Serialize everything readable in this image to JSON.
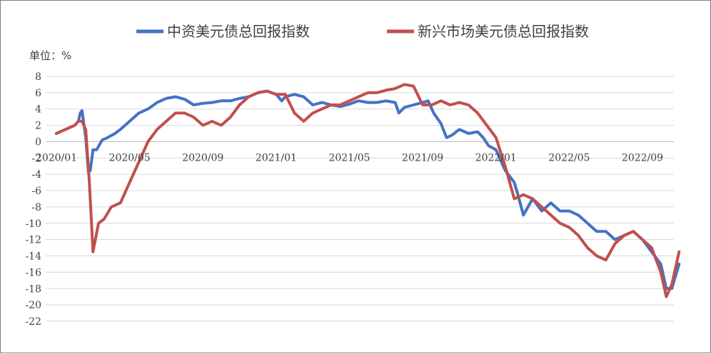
{
  "chart_data": {
    "type": "line",
    "unit_label": "单位：%",
    "legend_position": "top",
    "grid": "horizontal",
    "ylim": [
      -22,
      8
    ],
    "y_ticks": [
      8,
      6,
      4,
      2,
      0,
      -2,
      -4,
      -6,
      -8,
      -10,
      -12,
      -14,
      -16,
      -18,
      -20,
      -22
    ],
    "x_tick_labels": [
      "2020/01",
      "2020/05",
      "2020/09",
      "2021/01",
      "2021/05",
      "2021/09",
      "2022/01",
      "2022/05",
      "2022/09"
    ],
    "x_tick_months": [
      0,
      4,
      8,
      12,
      16,
      20,
      24,
      28,
      32
    ],
    "x_range_months": [
      0,
      34
    ],
    "series": [
      {
        "name": "中资美元债总回报指数",
        "color": "#4472C4",
        "x": [
          0,
          0.5,
          1,
          1.2,
          1.3,
          1.4,
          1.6,
          1.75,
          1.85,
          2.0,
          2.2,
          2.5,
          2.8,
          3.2,
          3.5,
          4,
          4.5,
          5,
          5.5,
          6,
          6.5,
          7,
          7.5,
          8,
          8.5,
          9,
          9.5,
          10,
          10.5,
          11,
          11.5,
          12,
          12.3,
          12.5,
          13,
          13.5,
          14,
          14.5,
          15,
          15.5,
          16,
          16.5,
          17,
          17.5,
          18,
          18.5,
          18.7,
          19,
          19.5,
          20,
          20.3,
          20.6,
          21,
          21.3,
          21.6,
          22,
          22.5,
          23,
          23.3,
          23.6,
          24,
          24.5,
          25,
          25.2,
          25.5,
          26,
          26.5,
          27,
          27.5,
          28,
          28.5,
          29,
          29.5,
          30,
          30.5,
          31,
          31.5,
          32,
          32.5,
          33,
          33.3,
          33.6,
          34
        ],
        "y": [
          1.0,
          1.5,
          2.0,
          2.5,
          3.5,
          3.8,
          0.5,
          -3.8,
          -3.5,
          -1.0,
          -1.0,
          0.2,
          0.5,
          1.0,
          1.5,
          2.5,
          3.5,
          4.0,
          4.8,
          5.3,
          5.5,
          5.2,
          4.5,
          4.7,
          4.8,
          5.0,
          5.0,
          5.3,
          5.5,
          6.0,
          6.2,
          5.8,
          5.0,
          5.5,
          5.8,
          5.5,
          4.5,
          4.8,
          4.5,
          4.3,
          4.6,
          5.0,
          4.8,
          4.8,
          5.0,
          4.8,
          3.5,
          4.2,
          4.5,
          4.8,
          5.0,
          3.5,
          2.2,
          0.5,
          0.8,
          1.5,
          1.0,
          1.2,
          0.5,
          -0.5,
          -1.0,
          -3.5,
          -5.0,
          -6.5,
          -9.0,
          -7.0,
          -8.5,
          -7.5,
          -8.5,
          -8.5,
          -9.0,
          -10.0,
          -11.0,
          -11.0,
          -12.0,
          -11.5,
          -11.0,
          -12.0,
          -13.5,
          -15.0,
          -18.0,
          -18.0,
          -15.0
        ]
      },
      {
        "name": "新兴市场美元债总回报指数",
        "color": "#C0504D",
        "x": [
          0,
          0.5,
          1,
          1.2,
          1.4,
          1.6,
          1.8,
          2.0,
          2.3,
          2.6,
          3.0,
          3.5,
          4,
          4.5,
          5,
          5.5,
          6,
          6.5,
          7,
          7.5,
          8,
          8.5,
          9,
          9.5,
          10,
          10.5,
          11,
          11.5,
          12,
          12.5,
          13,
          13.5,
          14,
          14.5,
          15,
          15.5,
          16,
          16.5,
          17,
          17.5,
          18,
          18.5,
          19,
          19.5,
          20,
          20.5,
          21,
          21.5,
          22,
          22.5,
          23,
          23.5,
          24,
          24.5,
          25,
          25.5,
          26,
          26.5,
          27,
          27.5,
          28,
          28.5,
          29,
          29.5,
          30,
          30.5,
          31,
          31.5,
          32,
          32.5,
          33,
          33.3,
          33.6,
          34
        ],
        "y": [
          1.0,
          1.5,
          2.0,
          2.5,
          2.5,
          1.5,
          -5.0,
          -13.5,
          -10.0,
          -9.5,
          -8.0,
          -7.5,
          -5.0,
          -2.5,
          0.0,
          1.5,
          2.5,
          3.5,
          3.5,
          3.0,
          2.0,
          2.5,
          2.0,
          3.0,
          4.5,
          5.5,
          6.0,
          6.2,
          5.8,
          5.8,
          3.5,
          2.5,
          3.5,
          4.0,
          4.5,
          4.5,
          5.0,
          5.5,
          6.0,
          6.0,
          6.3,
          6.5,
          7.0,
          6.8,
          4.5,
          4.5,
          5.0,
          4.5,
          4.8,
          4.5,
          3.5,
          2.0,
          0.5,
          -3.0,
          -7.0,
          -6.5,
          -7.0,
          -8.0,
          -9.0,
          -10.0,
          -10.5,
          -11.5,
          -13.0,
          -14.0,
          -14.5,
          -12.5,
          -11.5,
          -11.0,
          -12.0,
          -13.0,
          -16.0,
          -19.0,
          -17.5,
          -13.5
        ]
      }
    ]
  }
}
